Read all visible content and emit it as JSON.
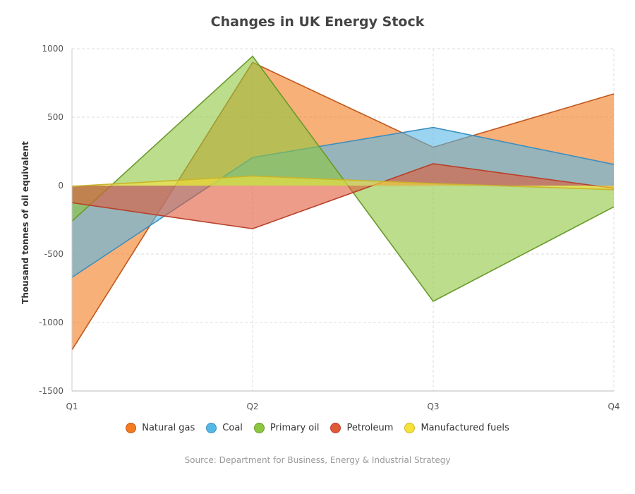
{
  "title": "Changes in UK Energy Stock",
  "source": "Source: Department for Business, Energy & Industrial Strategy",
  "chart_data": {
    "type": "area",
    "title": "Changes in UK Energy Stock",
    "xlabel": "",
    "ylabel": "Thousand tonnes of oil equivalent",
    "categories": [
      "Q1",
      "Q2",
      "Q3",
      "Q4"
    ],
    "ylim": [
      -1500,
      1000
    ],
    "yticks": [
      1000,
      500,
      0,
      -500,
      -1000,
      -1500
    ],
    "grid": true,
    "legend_position": "bottom",
    "series": [
      {
        "name": "Natural gas",
        "values": [
          -1200,
          900,
          280,
          670
        ],
        "color": "#f47b20",
        "stroke": "#c0571a"
      },
      {
        "name": "Coal",
        "values": [
          -670,
          205,
          425,
          155
        ],
        "color": "#56b8e6",
        "stroke": "#3d8fbf"
      },
      {
        "name": "Primary oil",
        "values": [
          -260,
          945,
          -845,
          -155
        ],
        "color": "#8dc63f",
        "stroke": "#6a9a2a"
      },
      {
        "name": "Petroleum",
        "values": [
          -125,
          -315,
          160,
          -20
        ],
        "color": "#e05a38",
        "stroke": "#b8402a"
      },
      {
        "name": "Manufactured fuels",
        "values": [
          -5,
          70,
          15,
          -30
        ],
        "color": "#f5e23a",
        "stroke": "#c9b52a"
      }
    ]
  }
}
